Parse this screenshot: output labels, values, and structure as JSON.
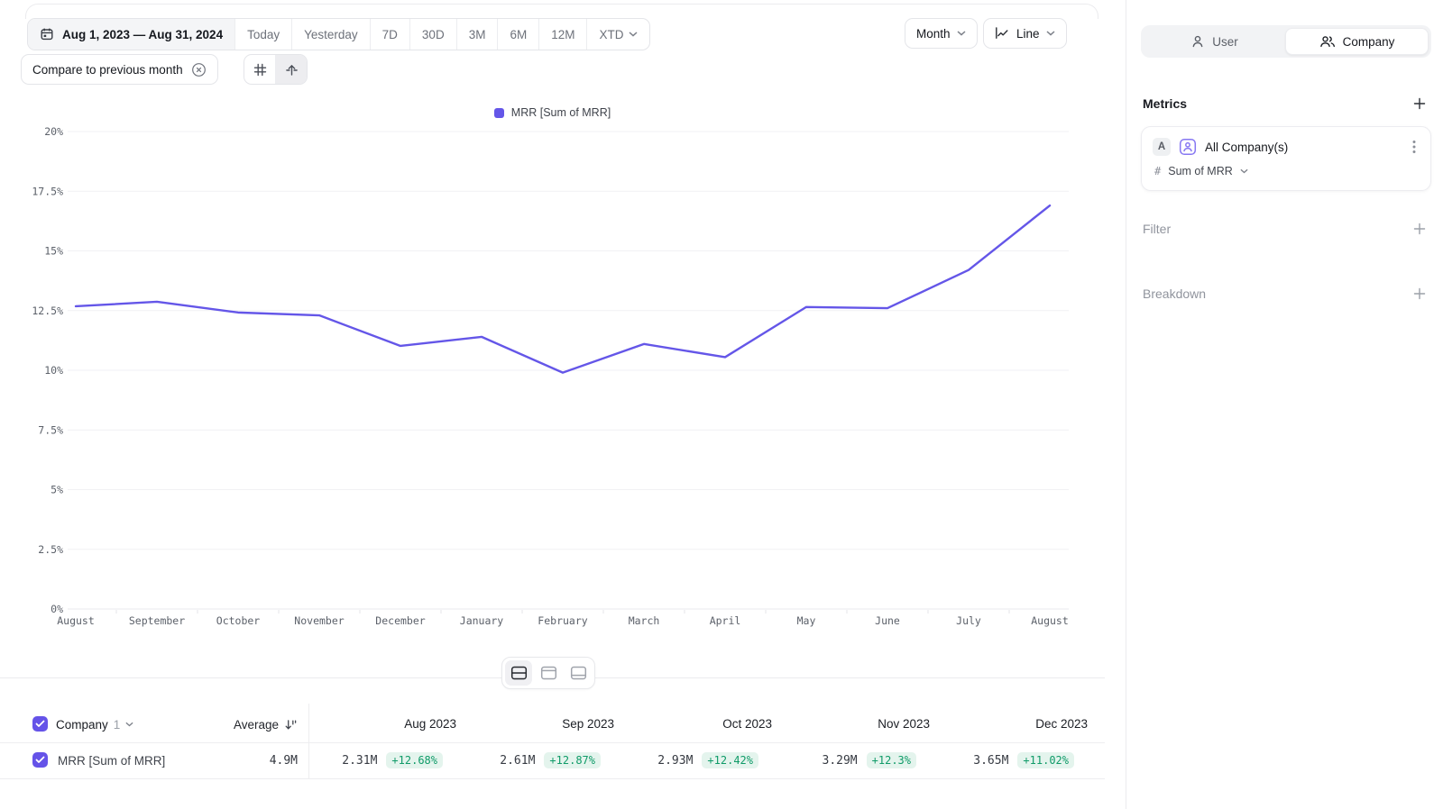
{
  "toolbar": {
    "date_range": "Aug 1, 2023 — Aug 31, 2024",
    "presets": [
      "Today",
      "Yesterday",
      "7D",
      "30D",
      "3M",
      "6M",
      "12M"
    ],
    "xtd": {
      "label": "XTD"
    },
    "compare_chip": {
      "label": "Compare to previous month"
    },
    "granularity": {
      "label": "Month"
    },
    "chart_type": {
      "label": "Line"
    }
  },
  "legend": {
    "label": "MRR [Sum of MRR]"
  },
  "chart_data": {
    "type": "line",
    "title": "",
    "xlabel": "",
    "ylabel": "",
    "x": [
      "August",
      "September",
      "October",
      "November",
      "December",
      "January",
      "February",
      "March",
      "April",
      "May",
      "June",
      "July",
      "August"
    ],
    "series": [
      {
        "name": "MRR [Sum of MRR]",
        "values": [
          12.68,
          12.87,
          12.42,
          12.3,
          11.02,
          11.4,
          9.9,
          11.1,
          10.55,
          12.65,
          12.6,
          14.2,
          16.9
        ]
      }
    ],
    "ylim": [
      0,
      20
    ],
    "yticks": [
      0,
      2.5,
      5,
      7.5,
      10,
      12.5,
      15,
      17.5,
      20
    ],
    "ytick_labels": [
      "0%",
      "2.5%",
      "5%",
      "7.5%",
      "10%",
      "12.5%",
      "15%",
      "17.5%",
      "20%"
    ],
    "grid": true,
    "legend_position": "top",
    "line_color": "#6456e8"
  },
  "table": {
    "entity_label": "Company",
    "entity_count": "1",
    "average_label": "Average",
    "columns": [
      "Aug 2023",
      "Sep 2023",
      "Oct 2023",
      "Nov 2023",
      "Dec 2023"
    ],
    "rows": [
      {
        "name": "MRR [Sum of MRR]",
        "average": "4.9M",
        "cells": [
          {
            "value": "2.31M",
            "delta": "+12.68%"
          },
          {
            "value": "2.61M",
            "delta": "+12.87%"
          },
          {
            "value": "2.93M",
            "delta": "+12.42%"
          },
          {
            "value": "3.29M",
            "delta": "+12.3%"
          },
          {
            "value": "3.65M",
            "delta": "+11.02%"
          }
        ]
      }
    ]
  },
  "sidebar": {
    "scope_toggle": {
      "options": [
        {
          "label": "User"
        },
        {
          "label": "Company"
        }
      ],
      "active": "Company"
    },
    "metrics": {
      "heading": "Metrics",
      "card": {
        "series_letter": "A",
        "name": "All Company(s)",
        "aggregation_symbol": "#",
        "aggregation": "Sum of MRR"
      }
    },
    "filter": {
      "heading": "Filter"
    },
    "breakdown": {
      "heading": "Breakdown"
    }
  },
  "colors": {
    "accent_purple": "#6456e8",
    "positive_green": "#0f9b68",
    "positive_green_bg": "#e4f4ed"
  }
}
